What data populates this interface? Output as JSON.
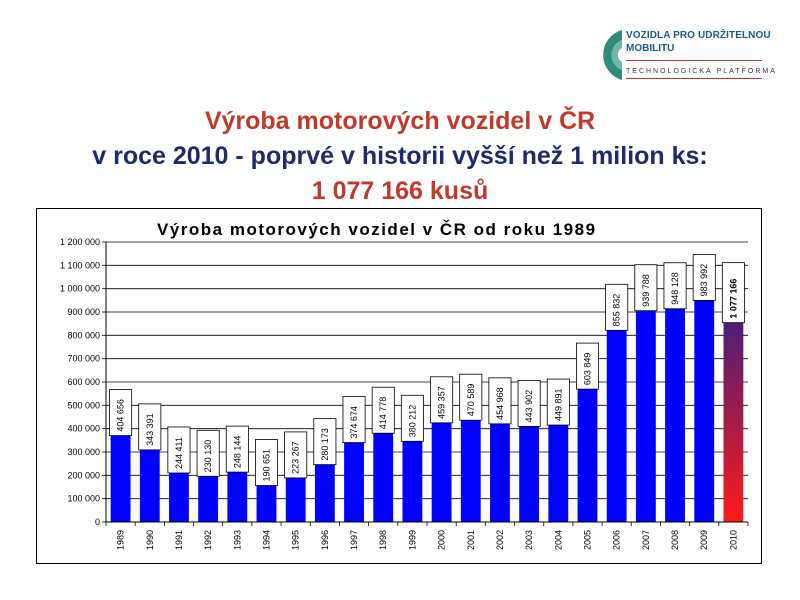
{
  "logo": {
    "line1": "VOZIDLA PRO UDRŽITELNOU",
    "line2": "MOBILITU",
    "line3": "TECHNOLOGICKÁ PLATFORMA"
  },
  "headline": {
    "line1": "Výroba motorových vozidel v ČR",
    "line2": "v roce 2010 - poprvé v historii vyšší než 1 milion ks:",
    "line3": "1 077 166 kusů"
  },
  "colors": {
    "bar": "#0000ff",
    "last_bar_top": "#1f1f8f",
    "last_bar_bottom": "#ff1a1a",
    "headline_red": "#c0392b",
    "headline_blue": "#1f2a6e"
  },
  "chart_data": {
    "type": "bar",
    "title": "Výroba motorových vozidel v ČR od roku 1989",
    "xlabel": "",
    "ylabel": "",
    "ylim": [
      0,
      1200000
    ],
    "y_ticks": [
      0,
      100000,
      200000,
      300000,
      400000,
      500000,
      600000,
      700000,
      800000,
      900000,
      1000000,
      1100000,
      1200000
    ],
    "y_tick_labels": [
      "0",
      "100 000",
      "200 000",
      "300 000",
      "400 000",
      "500 000",
      "600 000",
      "700 000",
      "800 000",
      "900 000",
      "1 000 000",
      "1 100 000",
      "1 200 000"
    ],
    "grid": true,
    "categories": [
      "1989",
      "1990",
      "1991",
      "1992",
      "1993",
      "1994",
      "1995",
      "1996",
      "1997",
      "1998",
      "1999",
      "2000",
      "2001",
      "2002",
      "2003",
      "2004",
      "2005",
      "2006",
      "2007",
      "2008",
      "2009",
      "2010"
    ],
    "values": [
      404656,
      343391,
      244411,
      230130,
      248144,
      190651,
      223267,
      280173,
      374674,
      414778,
      380212,
      459357,
      470589,
      454968,
      443902,
      449891,
      603849,
      855832,
      939788,
      948128,
      983992,
      1077166
    ],
    "data_labels": [
      "404 656",
      "343 391",
      "244 411",
      "230 130",
      "248 144",
      "190 651",
      "223 267",
      "280 173",
      "374 674",
      "414 778",
      "380 212",
      "459 357",
      "470 589",
      "454 968",
      "443 902",
      "449 891",
      "603 849",
      "855 832",
      "939 788",
      "948 128",
      "983 992",
      "1 077 166"
    ]
  }
}
